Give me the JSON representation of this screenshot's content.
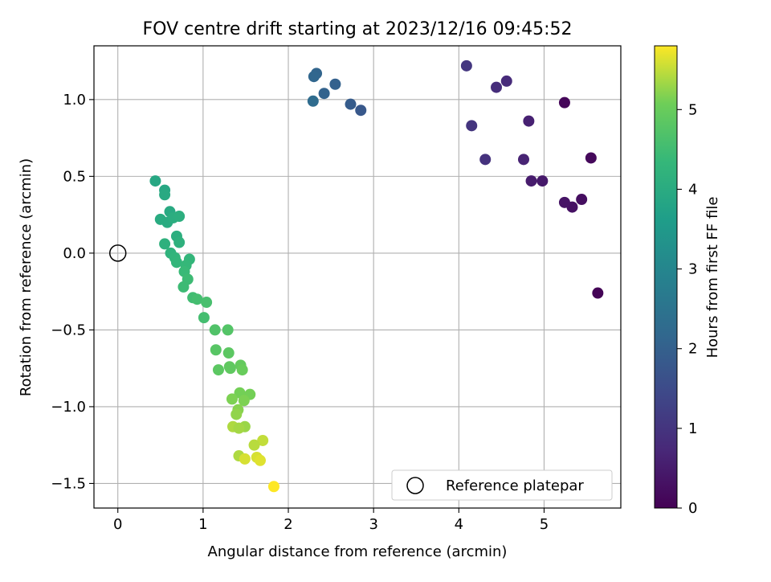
{
  "chart_data": {
    "type": "scatter",
    "title": "FOV centre drift starting at 2023/12/16 09:45:52",
    "xlabel": "Angular distance from reference (arcmin)",
    "ylabel": "Rotation from reference (arcmin)",
    "xlim": [
      -0.28,
      5.9
    ],
    "ylim": [
      -1.66,
      1.35
    ],
    "xticks": [
      0,
      1,
      2,
      3,
      4,
      5
    ],
    "yticks": [
      -1.5,
      -1.0,
      -0.5,
      0.0,
      0.5,
      1.0
    ],
    "xtick_labels": [
      "0",
      "1",
      "2",
      "3",
      "4",
      "5"
    ],
    "ytick_labels": [
      "−1.5",
      "−1.0",
      "−0.5",
      "0.0",
      "0.5",
      "1.0"
    ],
    "grid": true,
    "legend": {
      "location": "lower right",
      "entries": [
        {
          "label": "Reference platepar",
          "marker": "open-circle"
        }
      ]
    },
    "reference_point": {
      "x": 0.0,
      "y": 0.0
    },
    "colorbar": {
      "label": "Hours from first FF file",
      "colormap": "viridis",
      "range": [
        0,
        5.8
      ],
      "ticks": [
        0,
        1,
        2,
        3,
        4,
        5
      ],
      "tick_labels": [
        "0",
        "1",
        "2",
        "3",
        "4",
        "5"
      ]
    },
    "series": [
      {
        "points": [
          {
            "x": 5.63,
            "y": -0.26,
            "hours": 0.05
          },
          {
            "x": 5.55,
            "y": 0.62,
            "hours": 0.15
          },
          {
            "x": 5.24,
            "y": 0.98,
            "hours": 0.1
          },
          {
            "x": 5.44,
            "y": 0.35,
            "hours": 0.25
          },
          {
            "x": 5.33,
            "y": 0.3,
            "hours": 0.3
          },
          {
            "x": 5.24,
            "y": 0.33,
            "hours": 0.35
          },
          {
            "x": 4.98,
            "y": 0.47,
            "hours": 0.45
          },
          {
            "x": 4.85,
            "y": 0.47,
            "hours": 0.5
          },
          {
            "x": 4.82,
            "y": 0.86,
            "hours": 0.6
          },
          {
            "x": 4.76,
            "y": 0.61,
            "hours": 0.65
          },
          {
            "x": 4.56,
            "y": 1.12,
            "hours": 0.8
          },
          {
            "x": 4.44,
            "y": 1.08,
            "hours": 0.85
          },
          {
            "x": 4.31,
            "y": 0.61,
            "hours": 0.95
          },
          {
            "x": 4.15,
            "y": 0.83,
            "hours": 1.0
          },
          {
            "x": 4.09,
            "y": 1.22,
            "hours": 1.05
          },
          {
            "x": 2.85,
            "y": 0.93,
            "hours": 1.8
          },
          {
            "x": 2.73,
            "y": 0.97,
            "hours": 1.9
          },
          {
            "x": 2.55,
            "y": 1.1,
            "hours": 2.0
          },
          {
            "x": 2.42,
            "y": 1.04,
            "hours": 2.05
          },
          {
            "x": 2.33,
            "y": 1.17,
            "hours": 2.1
          },
          {
            "x": 2.3,
            "y": 1.15,
            "hours": 2.15
          },
          {
            "x": 2.29,
            "y": 0.99,
            "hours": 2.3
          },
          {
            "x": 0.44,
            "y": 0.47,
            "hours": 3.9
          },
          {
            "x": 0.55,
            "y": 0.41,
            "hours": 3.9
          },
          {
            "x": 0.55,
            "y": 0.38,
            "hours": 3.95
          },
          {
            "x": 0.61,
            "y": 0.27,
            "hours": 3.95
          },
          {
            "x": 0.5,
            "y": 0.22,
            "hours": 4.0
          },
          {
            "x": 0.58,
            "y": 0.2,
            "hours": 4.0
          },
          {
            "x": 0.65,
            "y": 0.23,
            "hours": 4.05
          },
          {
            "x": 0.72,
            "y": 0.24,
            "hours": 4.1
          },
          {
            "x": 0.69,
            "y": 0.11,
            "hours": 4.1
          },
          {
            "x": 0.72,
            "y": 0.07,
            "hours": 4.15
          },
          {
            "x": 0.55,
            "y": 0.06,
            "hours": 4.15
          },
          {
            "x": 0.62,
            "y": 0.0,
            "hours": 4.2
          },
          {
            "x": 0.67,
            "y": -0.03,
            "hours": 4.25
          },
          {
            "x": 0.69,
            "y": -0.06,
            "hours": 4.3
          },
          {
            "x": 0.84,
            "y": -0.04,
            "hours": 4.3
          },
          {
            "x": 0.8,
            "y": -0.08,
            "hours": 4.35
          },
          {
            "x": 0.78,
            "y": -0.12,
            "hours": 4.4
          },
          {
            "x": 0.82,
            "y": -0.17,
            "hours": 4.45
          },
          {
            "x": 0.77,
            "y": -0.22,
            "hours": 4.45
          },
          {
            "x": 0.88,
            "y": -0.29,
            "hours": 4.5
          },
          {
            "x": 0.93,
            "y": -0.3,
            "hours": 4.55
          },
          {
            "x": 1.04,
            "y": -0.32,
            "hours": 4.6
          },
          {
            "x": 1.01,
            "y": -0.42,
            "hours": 4.55
          },
          {
            "x": 1.14,
            "y": -0.5,
            "hours": 4.7
          },
          {
            "x": 1.29,
            "y": -0.5,
            "hours": 4.75
          },
          {
            "x": 1.15,
            "y": -0.63,
            "hours": 4.8
          },
          {
            "x": 1.3,
            "y": -0.65,
            "hours": 4.85
          },
          {
            "x": 1.18,
            "y": -0.76,
            "hours": 4.85
          },
          {
            "x": 1.31,
            "y": -0.74,
            "hours": 4.9
          },
          {
            "x": 1.32,
            "y": -0.75,
            "hours": 4.9
          },
          {
            "x": 1.44,
            "y": -0.73,
            "hours": 4.95
          },
          {
            "x": 1.46,
            "y": -0.76,
            "hours": 5.0
          },
          {
            "x": 1.43,
            "y": -0.91,
            "hours": 5.1
          },
          {
            "x": 1.55,
            "y": -0.92,
            "hours": 5.1
          },
          {
            "x": 1.34,
            "y": -0.95,
            "hours": 5.15
          },
          {
            "x": 1.48,
            "y": -0.96,
            "hours": 5.15
          },
          {
            "x": 1.41,
            "y": -1.02,
            "hours": 5.2
          },
          {
            "x": 1.39,
            "y": -1.05,
            "hours": 5.25
          },
          {
            "x": 1.49,
            "y": -1.13,
            "hours": 5.3
          },
          {
            "x": 1.35,
            "y": -1.13,
            "hours": 5.4
          },
          {
            "x": 1.42,
            "y": -1.14,
            "hours": 5.35
          },
          {
            "x": 1.7,
            "y": -1.22,
            "hours": 5.5
          },
          {
            "x": 1.6,
            "y": -1.25,
            "hours": 5.45
          },
          {
            "x": 1.42,
            "y": -1.32,
            "hours": 5.4
          },
          {
            "x": 1.49,
            "y": -1.34,
            "hours": 5.6
          },
          {
            "x": 1.63,
            "y": -1.33,
            "hours": 5.6
          },
          {
            "x": 1.67,
            "y": -1.35,
            "hours": 5.65
          },
          {
            "x": 1.83,
            "y": -1.52,
            "hours": 5.8
          }
        ]
      }
    ]
  }
}
